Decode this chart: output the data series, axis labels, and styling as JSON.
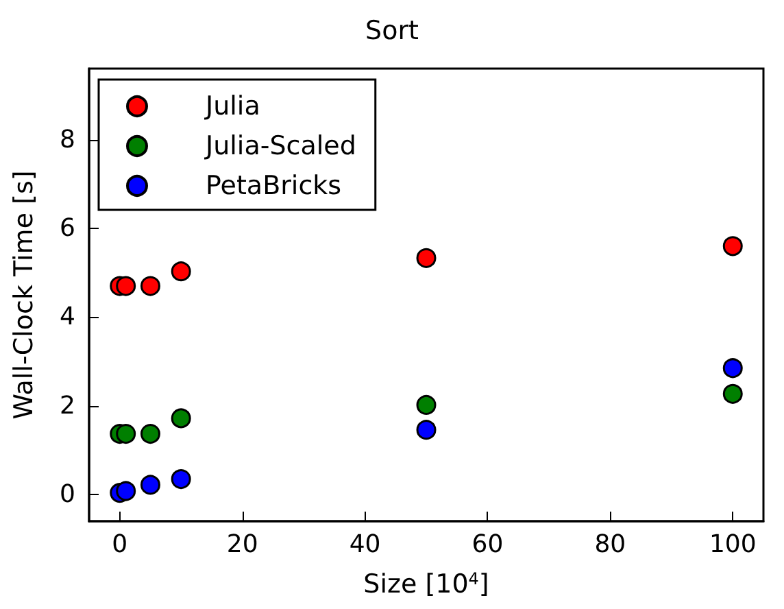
{
  "chart_data": {
    "type": "scatter",
    "title": "Sort",
    "xlabel": "Size [10$^{4}$]",
    "ylabel": "Wall-Clock Time [s]",
    "xlim": [
      -5,
      105
    ],
    "xticks": [
      0,
      20,
      40,
      60,
      80,
      100
    ],
    "ylim": [
      -0.6,
      9.6
    ],
    "yticks": [
      0,
      2,
      4,
      6,
      8
    ],
    "grid": false,
    "legend": "top left",
    "marker": "circle",
    "series": [
      {
        "name": "Julia",
        "color": "#ff0000",
        "x": [
          0,
          1,
          5,
          10,
          50,
          100
        ],
        "values": [
          4.7,
          4.7,
          4.7,
          5.03,
          5.33,
          5.6
        ]
      },
      {
        "name": "Julia-Scaled",
        "color": "#007f00",
        "x": [
          0,
          1,
          5,
          10,
          50,
          100
        ],
        "values": [
          1.37,
          1.37,
          1.37,
          1.72,
          2.02,
          2.27
        ]
      },
      {
        "name": "PetaBricks",
        "color": "#0000ff",
        "x": [
          0,
          1,
          5,
          10,
          50,
          100
        ],
        "values": [
          0.04,
          0.08,
          0.22,
          0.35,
          1.46,
          2.85
        ]
      }
    ]
  }
}
